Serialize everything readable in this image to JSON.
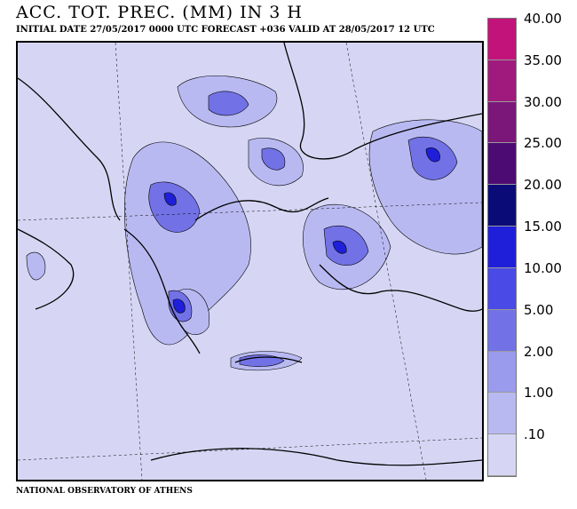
{
  "title": "ACC. TOT. PREC. (MM) IN 3 H",
  "subtitle": "INITIAL DATE 27/05/2017    0000 UTC  FORECAST +036 VALID AT  28/05/2017  12 UTC",
  "footer": "NATIONAL OBSERVATORY OF ATHENS",
  "legend": {
    "unit": "mm",
    "levels": [
      {
        "label": "40.00",
        "color": "#c2137a"
      },
      {
        "label": "35.00",
        "color": "#a01a7d"
      },
      {
        "label": "30.00",
        "color": "#7b1779"
      },
      {
        "label": "25.00",
        "color": "#4c0b73"
      },
      {
        "label": "20.00",
        "color": "#0b0b78"
      },
      {
        "label": "15.00",
        "color": "#1f1fd9"
      },
      {
        "label": "10.00",
        "color": "#4a4ae6"
      },
      {
        "label": "5.00",
        "color": "#7272e6"
      },
      {
        "label": "2.00",
        "color": "#9b9bee"
      },
      {
        "label": "1.00",
        "color": "#b9b9f2"
      },
      {
        "label": ".10",
        "color": "#d6d6f4"
      }
    ]
  },
  "map": {
    "background_color": "#d6d6f4",
    "coastline_color": "#000000",
    "region": "Greece and Aegean Sea"
  }
}
